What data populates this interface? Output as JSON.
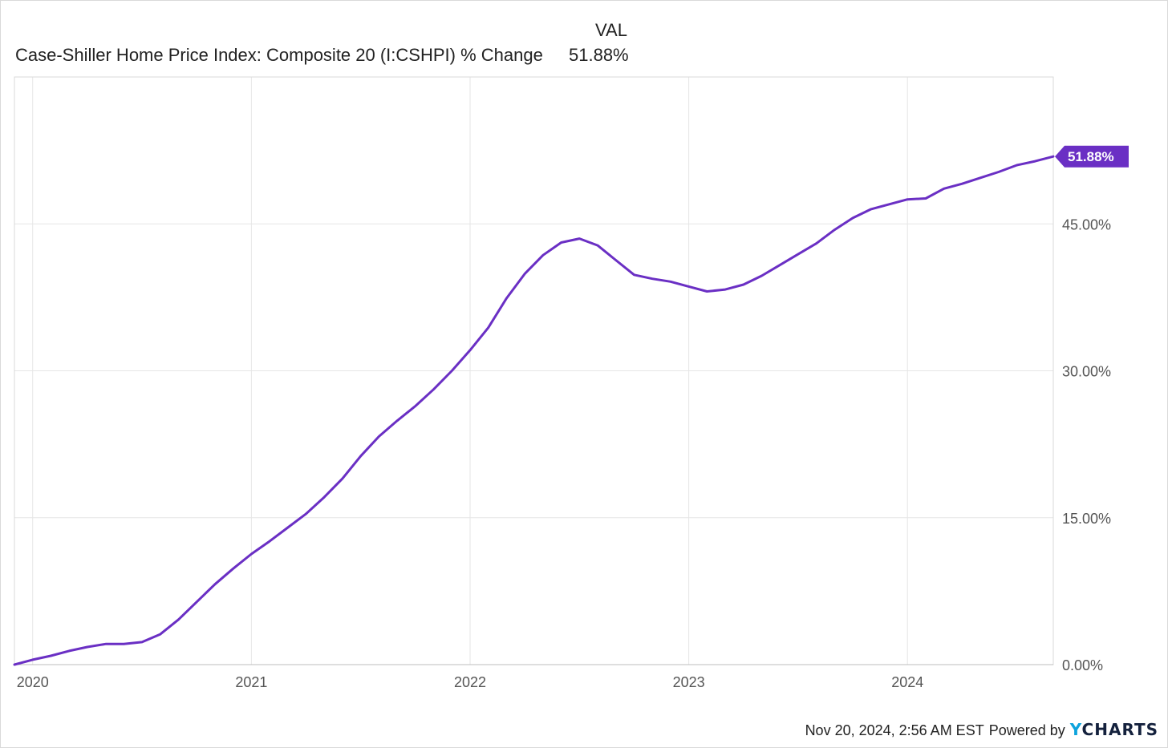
{
  "legend": {
    "header": "VAL",
    "series_name": "Case-Shiller Home Price Index: Composite 20 (I:CSHPI) % Change",
    "series_value": "51.88%"
  },
  "footer": {
    "timestamp": "Nov 20, 2024, 2:56 AM EST",
    "powered_by": "Powered by",
    "brand_first": "Y",
    "brand_rest": "CHARTS"
  },
  "colors": {
    "line": "#6a2fc4",
    "grid": "#e6e6e6",
    "axis_text": "#555555"
  },
  "chart_data": {
    "type": "line",
    "title": "",
    "xlabel": "",
    "ylabel": "",
    "x_tick_labels": [
      "2020",
      "2021",
      "2022",
      "2023",
      "2024"
    ],
    "y_tick_labels": [
      "0.00%",
      "15.00%",
      "30.00%",
      "45.00%"
    ],
    "y_ticks": [
      0,
      15,
      30,
      45
    ],
    "ylim": [
      0,
      60
    ],
    "xlim": [
      "2019-12-01",
      "2024-09-01"
    ],
    "grid": true,
    "last_value_label": "51.88%",
    "series": [
      {
        "name": "Case-Shiller Home Price Index: Composite 20 (I:CSHPI) % Change",
        "x": [
          "2019-12",
          "2020-01",
          "2020-02",
          "2020-03",
          "2020-04",
          "2020-05",
          "2020-06",
          "2020-07",
          "2020-08",
          "2020-09",
          "2020-10",
          "2020-11",
          "2020-12",
          "2021-01",
          "2021-02",
          "2021-03",
          "2021-04",
          "2021-05",
          "2021-06",
          "2021-07",
          "2021-08",
          "2021-09",
          "2021-10",
          "2021-11",
          "2021-12",
          "2022-01",
          "2022-02",
          "2022-03",
          "2022-04",
          "2022-05",
          "2022-06",
          "2022-07",
          "2022-08",
          "2022-09",
          "2022-10",
          "2022-11",
          "2022-12",
          "2023-01",
          "2023-02",
          "2023-03",
          "2023-04",
          "2023-05",
          "2023-06",
          "2023-07",
          "2023-08",
          "2023-09",
          "2023-10",
          "2023-11",
          "2023-12",
          "2024-01",
          "2024-02",
          "2024-03",
          "2024-04",
          "2024-05",
          "2024-06",
          "2024-07",
          "2024-08",
          "2024-09"
        ],
        "values": [
          0.0,
          0.5,
          0.9,
          1.4,
          1.8,
          2.1,
          2.1,
          2.3,
          3.1,
          4.6,
          6.4,
          8.2,
          9.8,
          11.3,
          12.6,
          14.0,
          15.4,
          17.1,
          19.0,
          21.3,
          23.3,
          24.9,
          26.4,
          28.1,
          30.0,
          32.1,
          34.4,
          37.4,
          39.9,
          41.8,
          43.1,
          43.5,
          42.8,
          41.3,
          39.8,
          39.4,
          39.1,
          38.6,
          38.1,
          38.3,
          38.8,
          39.7,
          40.8,
          41.9,
          43.0,
          44.4,
          45.6,
          46.5,
          47.0,
          47.5,
          47.6,
          48.6,
          49.1,
          49.7,
          50.3,
          51.0,
          51.4,
          51.88
        ]
      }
    ]
  }
}
